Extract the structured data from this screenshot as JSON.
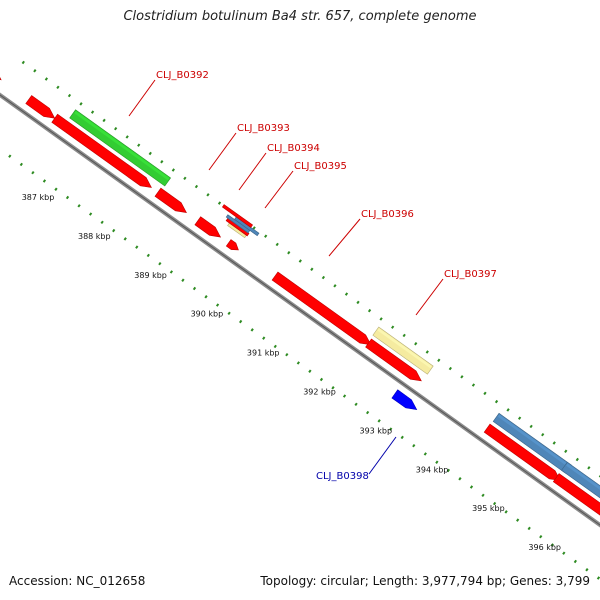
{
  "title": "Clostridium botulinum Ba4 str. 657, complete genome",
  "footer": {
    "accession": "Accession: NC_012658",
    "summary": "Topology: circular; Length: 3,977,794 bp; Genes: 3,799"
  },
  "colors": {
    "forward_cds": "#ff0000",
    "gene_green": "#33cc33",
    "gene_yellow": "#f5eba0",
    "gene_steelblue": "#4f86b8",
    "reverse_blue": "#0000ff",
    "tick_green": "#2e8b22",
    "label_red": "#cc0000",
    "label_blue": "#0000aa",
    "backbone": "#8c8c8c"
  },
  "scale_labels": [
    "387 kbp",
    "388 kbp",
    "389 kbp",
    "390 kbp",
    "391 kbp",
    "392 kbp",
    "393 kbp",
    "394 kbp",
    "395 kbp",
    "396 kbp"
  ],
  "gene_labels": [
    {
      "text": "CLJ_B0392",
      "strand": "forward"
    },
    {
      "text": "CLJ_B0393",
      "strand": "forward"
    },
    {
      "text": "CLJ_B0394",
      "strand": "forward"
    },
    {
      "text": "CLJ_B0395",
      "strand": "forward"
    },
    {
      "text": "CLJ_B0396",
      "strand": "forward"
    },
    {
      "text": "CLJ_B0397",
      "strand": "forward"
    },
    {
      "text": "CLJ_B0398",
      "strand": "reverse"
    }
  ]
}
